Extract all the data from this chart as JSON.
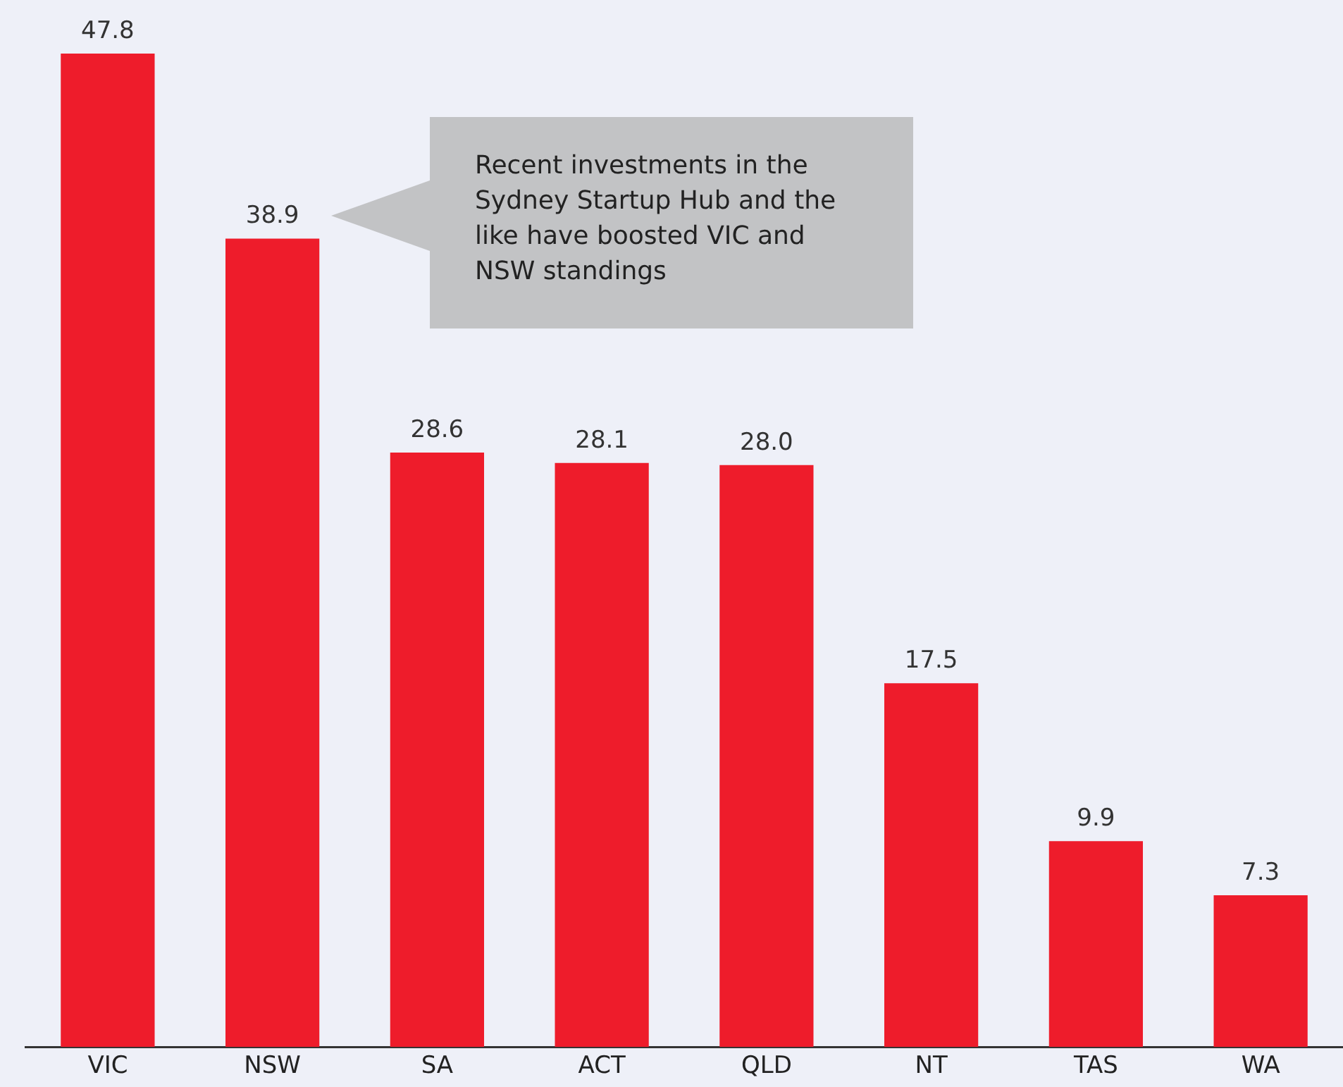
{
  "chart_data": {
    "type": "bar",
    "categories": [
      "VIC",
      "NSW",
      "SA",
      "ACT",
      "QLD",
      "NT",
      "TAS",
      "WA"
    ],
    "values": [
      47.8,
      38.9,
      28.6,
      28.1,
      28.0,
      17.5,
      9.9,
      7.3
    ],
    "color": "#ee1c2b",
    "value_labels": [
      "47.8",
      "38.9",
      "28.6",
      "28.1",
      "28.0",
      "17.5",
      "9.9",
      "7.3"
    ],
    "grid": false,
    "legend": false,
    "tick_labels": "x",
    "annotations": [
      "Recent investments in the Sydney Startup Hub and the like have boosted VIC and NSW standings"
    ]
  }
}
